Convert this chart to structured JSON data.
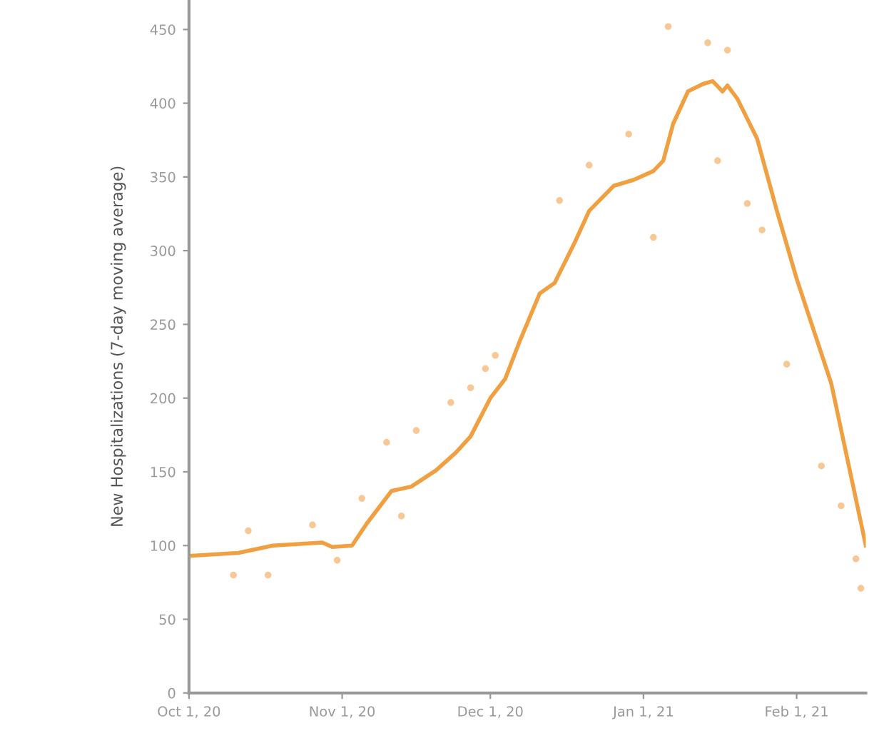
{
  "chart_data": {
    "type": "line",
    "ylabel": "New Hospitalizations (7-day moving average)",
    "xlim": [
      "2020-10-01",
      "2021-02-15"
    ],
    "ylim": [
      0,
      470
    ],
    "xticks": [
      {
        "value": "2020-10-01",
        "label": "Oct 1, 20"
      },
      {
        "value": "2020-11-01",
        "label": "Nov 1, 20"
      },
      {
        "value": "2020-12-01",
        "label": "Dec 1, 20"
      },
      {
        "value": "2021-01-01",
        "label": "Jan 1, 21"
      },
      {
        "value": "2021-02-01",
        "label": "Feb 1, 21"
      }
    ],
    "yticks": [
      0,
      50,
      100,
      150,
      200,
      250,
      300,
      350,
      400,
      450
    ],
    "grid": false,
    "legend": false,
    "series": [
      {
        "type": "scatter",
        "color": "#f7c894",
        "marker": "circle",
        "x": [
          "2020-10-10",
          "2020-10-13",
          "2020-10-17",
          "2020-10-26",
          "2020-10-31",
          "2020-11-05",
          "2020-11-10",
          "2020-11-13",
          "2020-11-16",
          "2020-11-23",
          "2020-11-27",
          "2020-11-30",
          "2020-12-02",
          "2020-12-15",
          "2020-12-21",
          "2020-12-29",
          "2021-01-03",
          "2021-01-06",
          "2021-01-14",
          "2021-01-16",
          "2021-01-18",
          "2021-01-22",
          "2021-01-25",
          "2021-01-30",
          "2021-02-06",
          "2021-02-10",
          "2021-02-13",
          "2021-02-14"
        ],
        "values": [
          80,
          110,
          80,
          114,
          90,
          132,
          170,
          120,
          178,
          197,
          207,
          220,
          229,
          334,
          358,
          379,
          309,
          452,
          441,
          361,
          436,
          332,
          314,
          223,
          154,
          127,
          91,
          71
        ]
      },
      {
        "color": "#f0a040",
        "marker": "none",
        "line_style": "solid",
        "x": [
          "2020-10-01",
          "2020-10-11",
          "2020-10-18",
          "2020-10-28",
          "2020-10-30",
          "2020-11-03",
          "2020-11-06",
          "2020-11-11",
          "2020-11-15",
          "2020-11-20",
          "2020-11-24",
          "2020-11-27",
          "2020-12-01",
          "2020-12-04",
          "2020-12-07",
          "2020-12-11",
          "2020-12-14",
          "2020-12-18",
          "2020-12-21",
          "2020-12-26",
          "2020-12-30",
          "2021-01-03",
          "2021-01-05",
          "2021-01-07",
          "2021-01-10",
          "2021-01-13",
          "2021-01-15",
          "2021-01-17",
          "2021-01-18",
          "2021-01-20",
          "2021-01-24",
          "2021-01-28",
          "2021-02-01",
          "2021-02-08",
          "2021-02-15"
        ],
        "values": [
          93,
          95,
          100,
          102,
          99,
          100,
          115,
          137,
          140,
          151,
          163,
          174,
          200,
          213,
          239,
          271,
          278,
          305,
          327,
          344,
          348,
          354,
          361,
          386,
          408,
          413,
          415,
          408,
          412,
          403,
          376,
          327,
          281,
          210,
          100
        ]
      }
    ]
  }
}
